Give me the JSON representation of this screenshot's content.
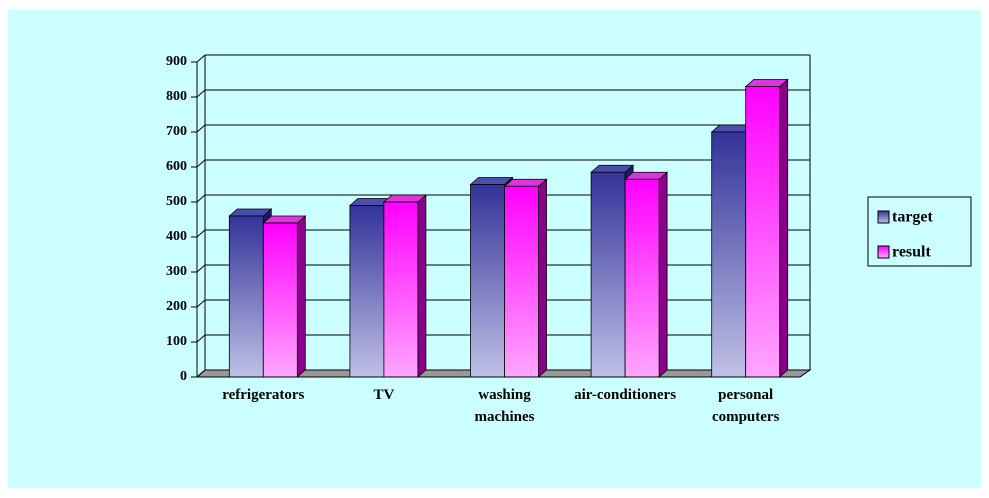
{
  "chart_data": {
    "type": "bar3d",
    "categories": [
      "refrigerators",
      "TV",
      "washing machines",
      "air-conditioners",
      "personal computers"
    ],
    "series": [
      {
        "name": "target",
        "color": "#333399",
        "values": [
          460,
          490,
          550,
          585,
          700
        ]
      },
      {
        "name": "result",
        "color": "#ff00ff",
        "values": [
          440,
          500,
          545,
          565,
          830
        ]
      }
    ],
    "ylim": [
      0,
      900
    ],
    "yticks": [
      0,
      100,
      200,
      300,
      400,
      500,
      600,
      700,
      800,
      900
    ],
    "grid": true,
    "legend": "right"
  }
}
